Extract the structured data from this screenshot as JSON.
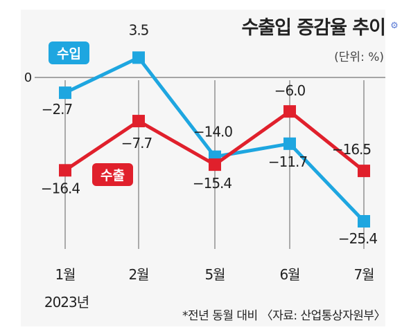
{
  "chart_data": {
    "type": "line",
    "title": "수출입 증감율 추이",
    "unit_label": "(단위: %)",
    "categories": [
      "1월",
      "2월",
      "5월",
      "6월",
      "7월"
    ],
    "year_label": "2023년",
    "zero_label": "0",
    "ylim": [
      -30,
      6
    ],
    "grid": "vertical-lines",
    "series": [
      {
        "name": "수입",
        "color": "#1ea6e0",
        "values": [
          -2.7,
          3.5,
          -14.0,
          -11.7,
          -25.4
        ],
        "labels": [
          "−2.7",
          "3.5",
          "−14.0",
          "−11.7",
          "−25.4"
        ]
      },
      {
        "name": "수출",
        "color": "#e0202c",
        "values": [
          -16.4,
          -7.7,
          -15.4,
          -6.0,
          -16.5
        ],
        "labels": [
          "−16.4",
          "−7.7",
          "−15.4",
          "−6.0",
          "−16.5"
        ]
      }
    ],
    "footnote": "*전년 동월 대비 〈자료: 산업통상자원부〉"
  },
  "icons": {
    "edge": "settings-icon"
  }
}
